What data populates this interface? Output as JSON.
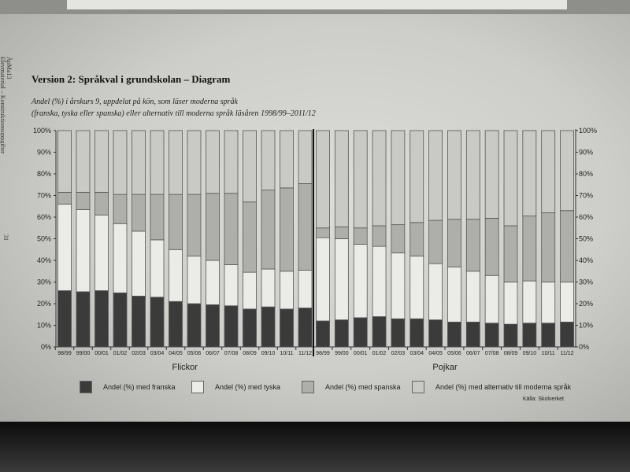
{
  "document": {
    "title": "Version 2: Språkval i grundskolan – Diagram",
    "subtitle_line1": "Andel (%) i årskurs 9, uppdelat på kön, som läser moderna språk",
    "subtitle_line2": "(franska, tyska eller spanska) eller alternativ till moderna språk läsåren 1998/99–2011/12",
    "margin_line1": "ÄpMa13",
    "margin_line2": "Elevmaterial – Konstruktionsuppgifter",
    "page_number": "31",
    "source": "Källa: Skolverket"
  },
  "chart_data": {
    "type": "bar",
    "stacked": true,
    "ylim": [
      0,
      100
    ],
    "yticks": [
      "0%",
      "10%",
      "20%",
      "30%",
      "40%",
      "50%",
      "60%",
      "70%",
      "80%",
      "90%",
      "100%"
    ],
    "legend_placement": "bottom",
    "grid": false,
    "colors": {
      "franska": "#3b3b3b",
      "tyska": "#ebebe7",
      "spanska": "#aeaeab",
      "alternativ": "#c9c9c6"
    },
    "series_names": [
      "Andel (%) med franska",
      "Andel (%) med tyska",
      "Andel (%) med spanska",
      "Andel (%) med alternativ till moderna språk"
    ],
    "groups": [
      {
        "name": "Flickor",
        "categories": [
          "98/99",
          "99/00",
          "00/01",
          "01/02",
          "02/03",
          "03/04",
          "04/05",
          "05/06",
          "06/07",
          "07/08",
          "08/09",
          "09/10",
          "10/11",
          "11/12"
        ],
        "franska": [
          26,
          25.5,
          26,
          25,
          23.5,
          23,
          21,
          20,
          19.5,
          19,
          17.5,
          18.5,
          17.5,
          18
        ],
        "tyska": [
          40,
          38,
          35,
          32,
          30,
          26.5,
          24,
          22,
          20.5,
          19,
          17,
          17.5,
          17.5,
          17.5
        ],
        "spanska": [
          5.5,
          8,
          10.5,
          13.5,
          17,
          21,
          25.5,
          28.5,
          31,
          33,
          32.5,
          36.5,
          38.5,
          40
        ],
        "alternativ": [
          28.5,
          28.5,
          28.5,
          29.5,
          29.5,
          29.5,
          29.5,
          29.5,
          29,
          29,
          33,
          27.5,
          26.5,
          24.5
        ]
      },
      {
        "name": "Pojkar",
        "categories": [
          "98/99",
          "99/00",
          "00/01",
          "01/02",
          "02/03",
          "03/04",
          "04/05",
          "05/06",
          "06/07",
          "07/08",
          "08/09",
          "09/10",
          "10/11",
          "11/12"
        ],
        "franska": [
          12,
          12.5,
          13.5,
          14,
          13,
          13,
          12.5,
          11.5,
          11.5,
          11,
          10.5,
          11,
          11,
          11.5
        ],
        "tyska": [
          38.5,
          37.5,
          34,
          32.5,
          30.5,
          29,
          26,
          25.5,
          23.5,
          22,
          19.5,
          19.5,
          19,
          18.5
        ],
        "spanska": [
          4.5,
          5.5,
          7.5,
          9.5,
          13,
          15.5,
          20,
          22,
          24,
          26.5,
          26,
          30,
          32,
          33
        ],
        "alternativ": [
          45,
          44.5,
          45,
          44,
          43.5,
          42.5,
          41.5,
          41,
          41,
          40.5,
          44,
          39.5,
          38,
          37
        ]
      }
    ]
  }
}
